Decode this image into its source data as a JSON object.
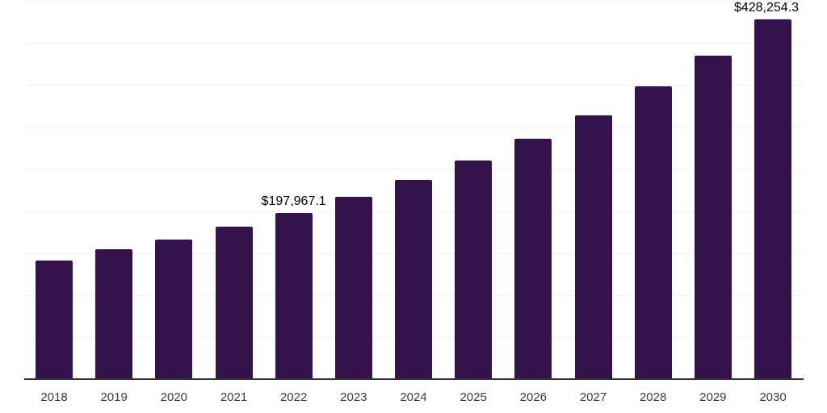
{
  "chart_data": {
    "type": "bar",
    "title": "",
    "xlabel": "",
    "ylabel": "",
    "categories": [
      "2018",
      "2019",
      "2020",
      "2021",
      "2022",
      "2023",
      "2024",
      "2025",
      "2026",
      "2027",
      "2028",
      "2029",
      "2030"
    ],
    "values": [
      141000,
      154300,
      165800,
      181200,
      197967.1,
      216700,
      237400,
      259900,
      286100,
      314200,
      348200,
      385000,
      428254.3
    ],
    "value_labels": [
      {
        "category": "2022",
        "text": "$197,967.1"
      },
      {
        "category": "2030",
        "text": "$428,254.3"
      }
    ],
    "ylim": [
      0,
      450000
    ],
    "gridline_interval": 50000,
    "grid": "horizontal-only",
    "legend": "none",
    "y_axis_tick_labels": "none",
    "colors": {
      "bar": "#35124B",
      "axis": "#333333",
      "gridline": "#f2f2f2",
      "tick_label": "#3d3d3d",
      "annotation": "#000000",
      "background": "#ffffff"
    }
  }
}
